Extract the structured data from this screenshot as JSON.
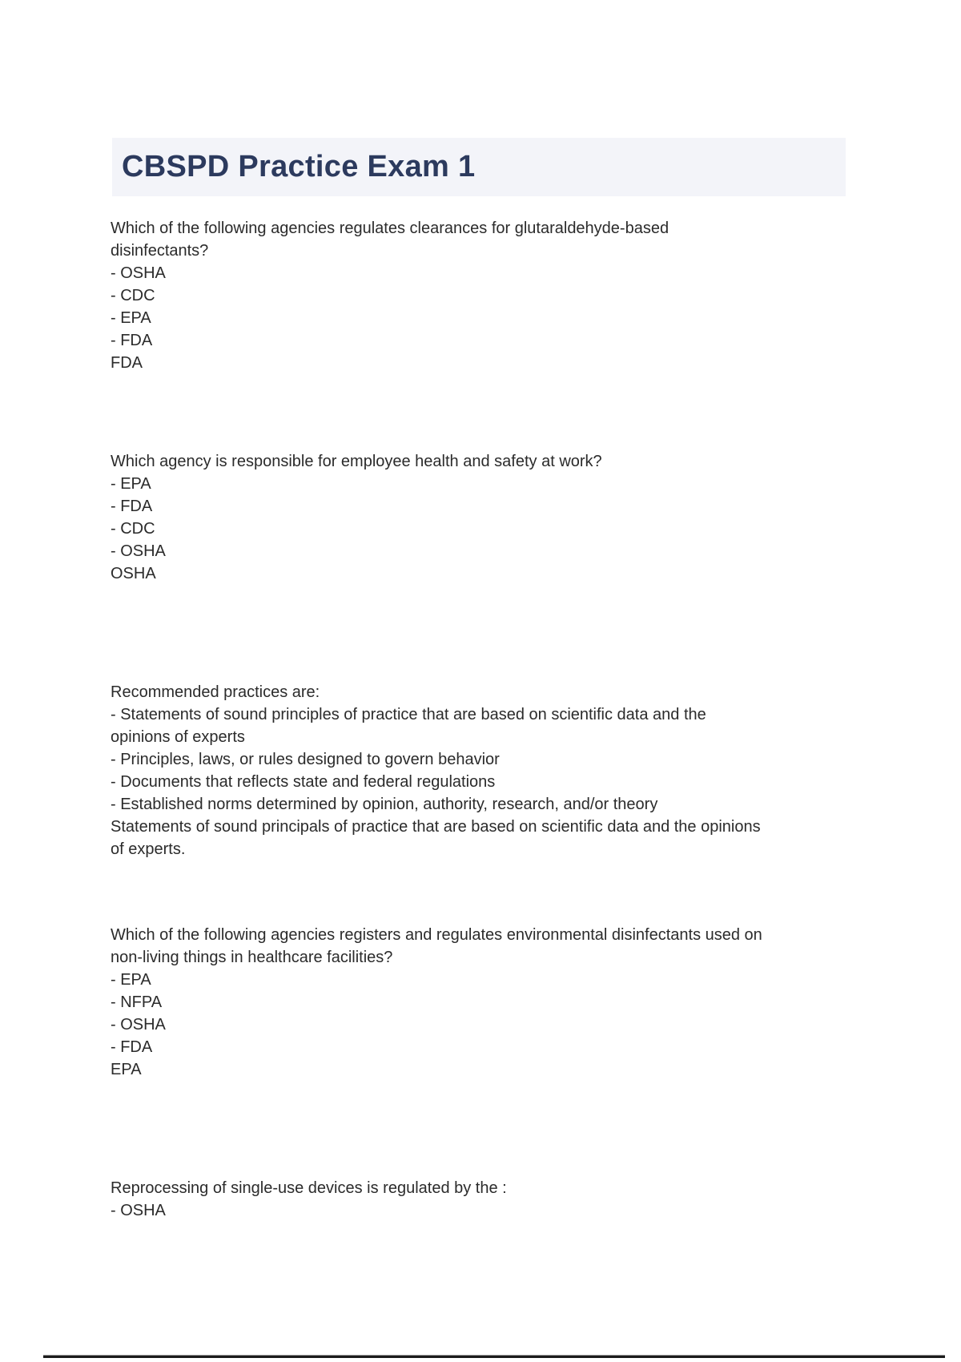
{
  "page": {
    "title": "CBSPD Practice Exam 1"
  },
  "colors": {
    "title_text": "#2c3a5e",
    "title_band_bg": "#f3f4f9",
    "body_text": "#2b2b2b",
    "bottom_rule": "#1c1c1c"
  },
  "questions": [
    {
      "lines": [
        "Which of the following agencies regulates clearances for glutaraldehyde-based",
        "disinfectants?",
        "- OSHA",
        "- CDC",
        "- EPA",
        "- FDA",
        "FDA"
      ]
    },
    {
      "lines": [
        "Which agency is responsible for employee health and safety at work?",
        "- EPA",
        "- FDA",
        "- CDC",
        "- OSHA",
        "OSHA"
      ]
    },
    {
      "lines": [
        "Recommended practices are:",
        "- Statements of sound principles of practice that are based on scientific data and the",
        "opinions of experts",
        "- Principles, laws, or rules designed to govern behavior",
        "- Documents that reflects state and federal regulations",
        "- Established norms determined by opinion, authority, research, and/or theory",
        "Statements of sound principals of practice that are based on scientific data and the opinions",
        "of experts."
      ]
    },
    {
      "lines": [
        "Which of the following agencies registers and regulates environmental disinfectants used on",
        "non-living things in healthcare facilities?",
        "- EPA",
        "- NFPA",
        "- OSHA",
        "- FDA",
        "EPA"
      ]
    },
    {
      "lines": [
        "Reprocessing of single-use devices is regulated by the :",
        "- OSHA"
      ]
    }
  ]
}
